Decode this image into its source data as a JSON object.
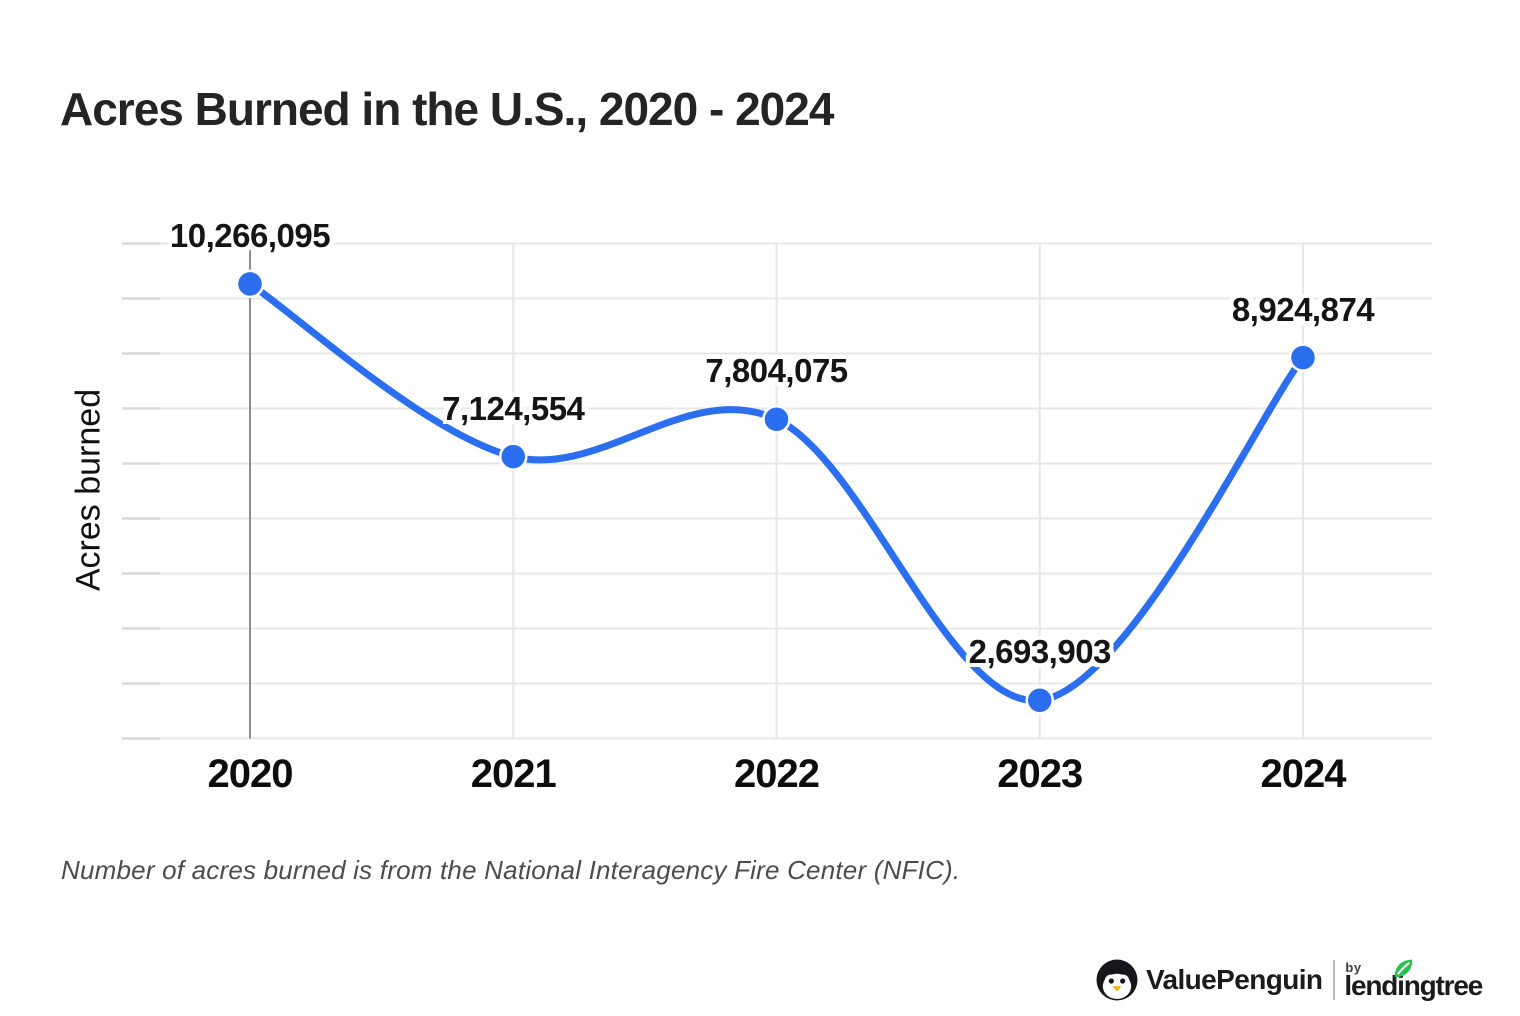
{
  "title": "Acres Burned in the U.S., 2020 - 2024",
  "footnote": "Number of acres burned is from the National Interagency Fire Center (NFIC).",
  "brand": {
    "valuepenguin": "ValuePenguin",
    "by": "by",
    "lendingtree": "lendingtree"
  },
  "chart_data": {
    "type": "line",
    "title": "Acres Burned in the U.S., 2020 - 2024",
    "categories": [
      "2020",
      "2021",
      "2022",
      "2023",
      "2024"
    ],
    "values": [
      10266095,
      7124554,
      7804075,
      2693903,
      8924874
    ],
    "point_labels": [
      "10,266,095",
      "7,124,554",
      "7,804,075",
      "2,693,903",
      "8,924,874"
    ],
    "xlabel": "",
    "ylabel": "Acres burned",
    "ylim": [
      2000000,
      11000000
    ],
    "grid_step": 1000000,
    "grid": true,
    "legend": "none",
    "smooth": true,
    "line_color": "#2B6FF0",
    "marker_color": "#2B6FF0",
    "gridline_color": "#e7e7e7",
    "first_category_axis_color": "#8e8e8e",
    "label_color": "#151515"
  }
}
